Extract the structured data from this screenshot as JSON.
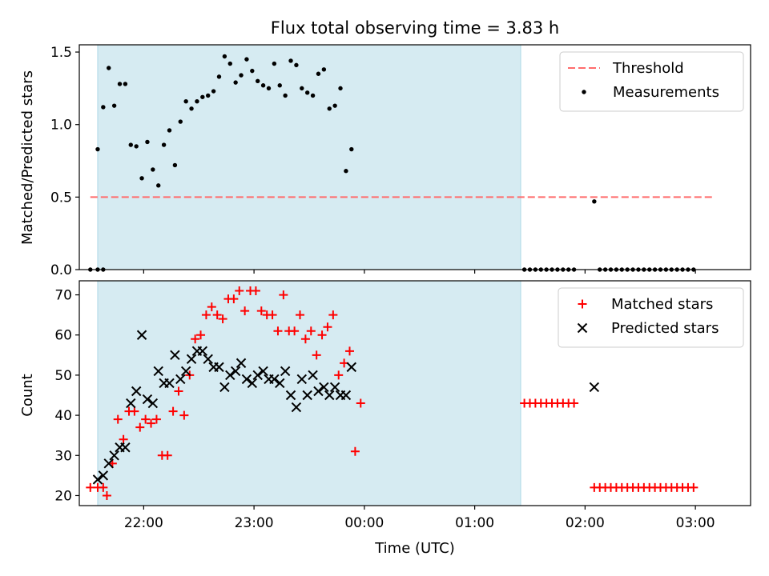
{
  "title": "Flux total observing time = 3.83 h",
  "colors": {
    "span": "#add8e6",
    "threshold": "#ff6b6b",
    "measurement": "#000000",
    "matched": "#ff0000",
    "predicted": "#000000"
  },
  "chart_data": [
    {
      "type": "scatter",
      "panel": "top",
      "title": "Flux total observing time = 3.83 h",
      "xlabel": "",
      "ylabel": "Matched/Predicted stars",
      "xlim": [
        "21:25",
        "03:30"
      ],
      "ylim": [
        0,
        1.55
      ],
      "yticks": [
        "0.0",
        "0.5",
        "1.0",
        "1.5"
      ],
      "observing_span": [
        "21:35",
        "01:25"
      ],
      "legend_position": "upper right",
      "series": [
        {
          "name": "Threshold",
          "style": "dashed-line",
          "x": [
            "21:31",
            "03:10"
          ],
          "y": [
            0.5,
            0.5
          ]
        },
        {
          "name": "Measurements",
          "style": "dot",
          "points": [
            [
              "21:31",
              0
            ],
            [
              "21:35",
              0
            ],
            [
              "21:38",
              0
            ],
            [
              "21:35",
              0.83
            ],
            [
              "21:38",
              1.12
            ],
            [
              "21:41",
              1.39
            ],
            [
              "21:44",
              1.13
            ],
            [
              "21:47",
              1.28
            ],
            [
              "21:50",
              1.28
            ],
            [
              "21:53",
              0.86
            ],
            [
              "21:56",
              0.85
            ],
            [
              "21:59",
              0.63
            ],
            [
              "22:02",
              0.88
            ],
            [
              "22:05",
              0.69
            ],
            [
              "22:08",
              0.58
            ],
            [
              "22:11",
              0.86
            ],
            [
              "22:14",
              0.96
            ],
            [
              "22:17",
              0.72
            ],
            [
              "22:20",
              1.02
            ],
            [
              "22:23",
              1.16
            ],
            [
              "22:26",
              1.11
            ],
            [
              "22:29",
              1.16
            ],
            [
              "22:32",
              1.19
            ],
            [
              "22:35",
              1.2
            ],
            [
              "22:38",
              1.23
            ],
            [
              "22:41",
              1.33
            ],
            [
              "22:44",
              1.47
            ],
            [
              "22:47",
              1.42
            ],
            [
              "22:50",
              1.29
            ],
            [
              "22:53",
              1.34
            ],
            [
              "22:56",
              1.45
            ],
            [
              "22:59",
              1.37
            ],
            [
              "23:02",
              1.3
            ],
            [
              "23:05",
              1.27
            ],
            [
              "23:08",
              1.25
            ],
            [
              "23:11",
              1.42
            ],
            [
              "23:14",
              1.27
            ],
            [
              "23:17",
              1.2
            ],
            [
              "23:20",
              1.44
            ],
            [
              "23:23",
              1.41
            ],
            [
              "23:26",
              1.25
            ],
            [
              "23:29",
              1.22
            ],
            [
              "23:32",
              1.2
            ],
            [
              "23:35",
              1.35
            ],
            [
              "23:38",
              1.38
            ],
            [
              "23:41",
              1.11
            ],
            [
              "23:44",
              1.13
            ],
            [
              "23:47",
              1.25
            ],
            [
              "23:50",
              0.68
            ],
            [
              "23:53",
              0.83
            ],
            [
              "01:27",
              0
            ],
            [
              "01:30",
              0
            ],
            [
              "01:33",
              0
            ],
            [
              "01:36",
              0
            ],
            [
              "01:39",
              0
            ],
            [
              "01:42",
              0
            ],
            [
              "01:45",
              0
            ],
            [
              "01:48",
              0
            ],
            [
              "01:51",
              0
            ],
            [
              "01:54",
              0
            ],
            [
              "02:05",
              0.47
            ],
            [
              "02:08",
              0
            ],
            [
              "02:11",
              0
            ],
            [
              "02:14",
              0
            ],
            [
              "02:17",
              0
            ],
            [
              "02:20",
              0
            ],
            [
              "02:23",
              0
            ],
            [
              "02:26",
              0
            ],
            [
              "02:29",
              0
            ],
            [
              "02:32",
              0
            ],
            [
              "02:35",
              0
            ],
            [
              "02:38",
              0
            ],
            [
              "02:41",
              0
            ],
            [
              "02:44",
              0
            ],
            [
              "02:47",
              0
            ],
            [
              "02:50",
              0
            ],
            [
              "02:53",
              0
            ],
            [
              "02:56",
              0
            ],
            [
              "02:59",
              0
            ]
          ]
        }
      ]
    },
    {
      "type": "scatter",
      "panel": "bottom",
      "xlabel": "Time (UTC)",
      "ylabel": "Count",
      "xlim": [
        "21:25",
        "03:30"
      ],
      "ylim": [
        17.5,
        73.5
      ],
      "yticks": [
        "20",
        "30",
        "40",
        "50",
        "60",
        "70"
      ],
      "xticks": [
        "22:00",
        "23:00",
        "00:00",
        "01:00",
        "02:00",
        "03:00"
      ],
      "observing_span": [
        "21:35",
        "01:25"
      ],
      "legend_position": "upper right",
      "series": [
        {
          "name": "Matched stars",
          "style": "plus",
          "points": [
            [
              "21:31",
              22
            ],
            [
              "21:35",
              22
            ],
            [
              "21:38",
              22
            ],
            [
              "21:40",
              20
            ],
            [
              "21:43",
              28
            ],
            [
              "21:46",
              39
            ],
            [
              "21:49",
              34
            ],
            [
              "21:52",
              41
            ],
            [
              "21:55",
              41
            ],
            [
              "21:58",
              37
            ],
            [
              "22:01",
              39
            ],
            [
              "22:04",
              38
            ],
            [
              "22:07",
              39
            ],
            [
              "22:10",
              30
            ],
            [
              "22:13",
              30
            ],
            [
              "22:16",
              41
            ],
            [
              "22:19",
              46
            ],
            [
              "22:22",
              40
            ],
            [
              "22:25",
              50
            ],
            [
              "22:28",
              59
            ],
            [
              "22:31",
              60
            ],
            [
              "22:34",
              65
            ],
            [
              "22:37",
              67
            ],
            [
              "22:40",
              65
            ],
            [
              "22:43",
              64
            ],
            [
              "22:46",
              69
            ],
            [
              "22:49",
              69
            ],
            [
              "22:52",
              71
            ],
            [
              "22:55",
              66
            ],
            [
              "22:58",
              71
            ],
            [
              "23:01",
              71
            ],
            [
              "23:04",
              66
            ],
            [
              "23:07",
              65
            ],
            [
              "23:10",
              65
            ],
            [
              "23:13",
              61
            ],
            [
              "23:16",
              70
            ],
            [
              "23:19",
              61
            ],
            [
              "23:22",
              61
            ],
            [
              "23:25",
              65
            ],
            [
              "23:28",
              59
            ],
            [
              "23:31",
              61
            ],
            [
              "23:34",
              55
            ],
            [
              "23:37",
              60
            ],
            [
              "23:40",
              62
            ],
            [
              "23:43",
              65
            ],
            [
              "23:46",
              50
            ],
            [
              "23:49",
              53
            ],
            [
              "23:52",
              56
            ],
            [
              "23:55",
              31
            ],
            [
              "23:58",
              43
            ],
            [
              "01:27",
              43
            ],
            [
              "01:30",
              43
            ],
            [
              "01:33",
              43
            ],
            [
              "01:36",
              43
            ],
            [
              "01:39",
              43
            ],
            [
              "01:42",
              43
            ],
            [
              "01:45",
              43
            ],
            [
              "01:48",
              43
            ],
            [
              "01:51",
              43
            ],
            [
              "01:54",
              43
            ],
            [
              "02:05",
              22
            ],
            [
              "02:08",
              22
            ],
            [
              "02:11",
              22
            ],
            [
              "02:14",
              22
            ],
            [
              "02:17",
              22
            ],
            [
              "02:20",
              22
            ],
            [
              "02:23",
              22
            ],
            [
              "02:26",
              22
            ],
            [
              "02:29",
              22
            ],
            [
              "02:32",
              22
            ],
            [
              "02:35",
              22
            ],
            [
              "02:38",
              22
            ],
            [
              "02:41",
              22
            ],
            [
              "02:44",
              22
            ],
            [
              "02:47",
              22
            ],
            [
              "02:50",
              22
            ],
            [
              "02:53",
              22
            ],
            [
              "02:56",
              22
            ],
            [
              "02:59",
              22
            ]
          ]
        },
        {
          "name": "Predicted stars",
          "style": "x",
          "points": [
            [
              "21:35",
              24
            ],
            [
              "21:38",
              25
            ],
            [
              "21:41",
              28
            ],
            [
              "21:44",
              30
            ],
            [
              "21:47",
              32
            ],
            [
              "21:50",
              32
            ],
            [
              "21:53",
              43
            ],
            [
              "21:56",
              46
            ],
            [
              "21:59",
              60
            ],
            [
              "22:02",
              44
            ],
            [
              "22:05",
              43
            ],
            [
              "22:08",
              51
            ],
            [
              "22:11",
              48
            ],
            [
              "22:14",
              48
            ],
            [
              "22:17",
              55
            ],
            [
              "22:20",
              49
            ],
            [
              "22:23",
              51
            ],
            [
              "22:26",
              54
            ],
            [
              "22:29",
              56
            ],
            [
              "22:32",
              56
            ],
            [
              "22:35",
              54
            ],
            [
              "22:38",
              52
            ],
            [
              "22:41",
              52
            ],
            [
              "22:44",
              47
            ],
            [
              "22:47",
              50
            ],
            [
              "22:50",
              51
            ],
            [
              "22:53",
              53
            ],
            [
              "22:56",
              49
            ],
            [
              "22:59",
              48
            ],
            [
              "23:02",
              50
            ],
            [
              "23:05",
              51
            ],
            [
              "23:08",
              49
            ],
            [
              "23:11",
              49
            ],
            [
              "23:14",
              48
            ],
            [
              "23:17",
              51
            ],
            [
              "23:20",
              45
            ],
            [
              "23:23",
              42
            ],
            [
              "23:26",
              49
            ],
            [
              "23:29",
              45
            ],
            [
              "23:32",
              50
            ],
            [
              "23:35",
              46
            ],
            [
              "23:38",
              47
            ],
            [
              "23:41",
              45
            ],
            [
              "23:44",
              47
            ],
            [
              "23:47",
              45
            ],
            [
              "23:50",
              45
            ],
            [
              "23:53",
              52
            ],
            [
              "02:05",
              47
            ]
          ]
        }
      ]
    }
  ]
}
